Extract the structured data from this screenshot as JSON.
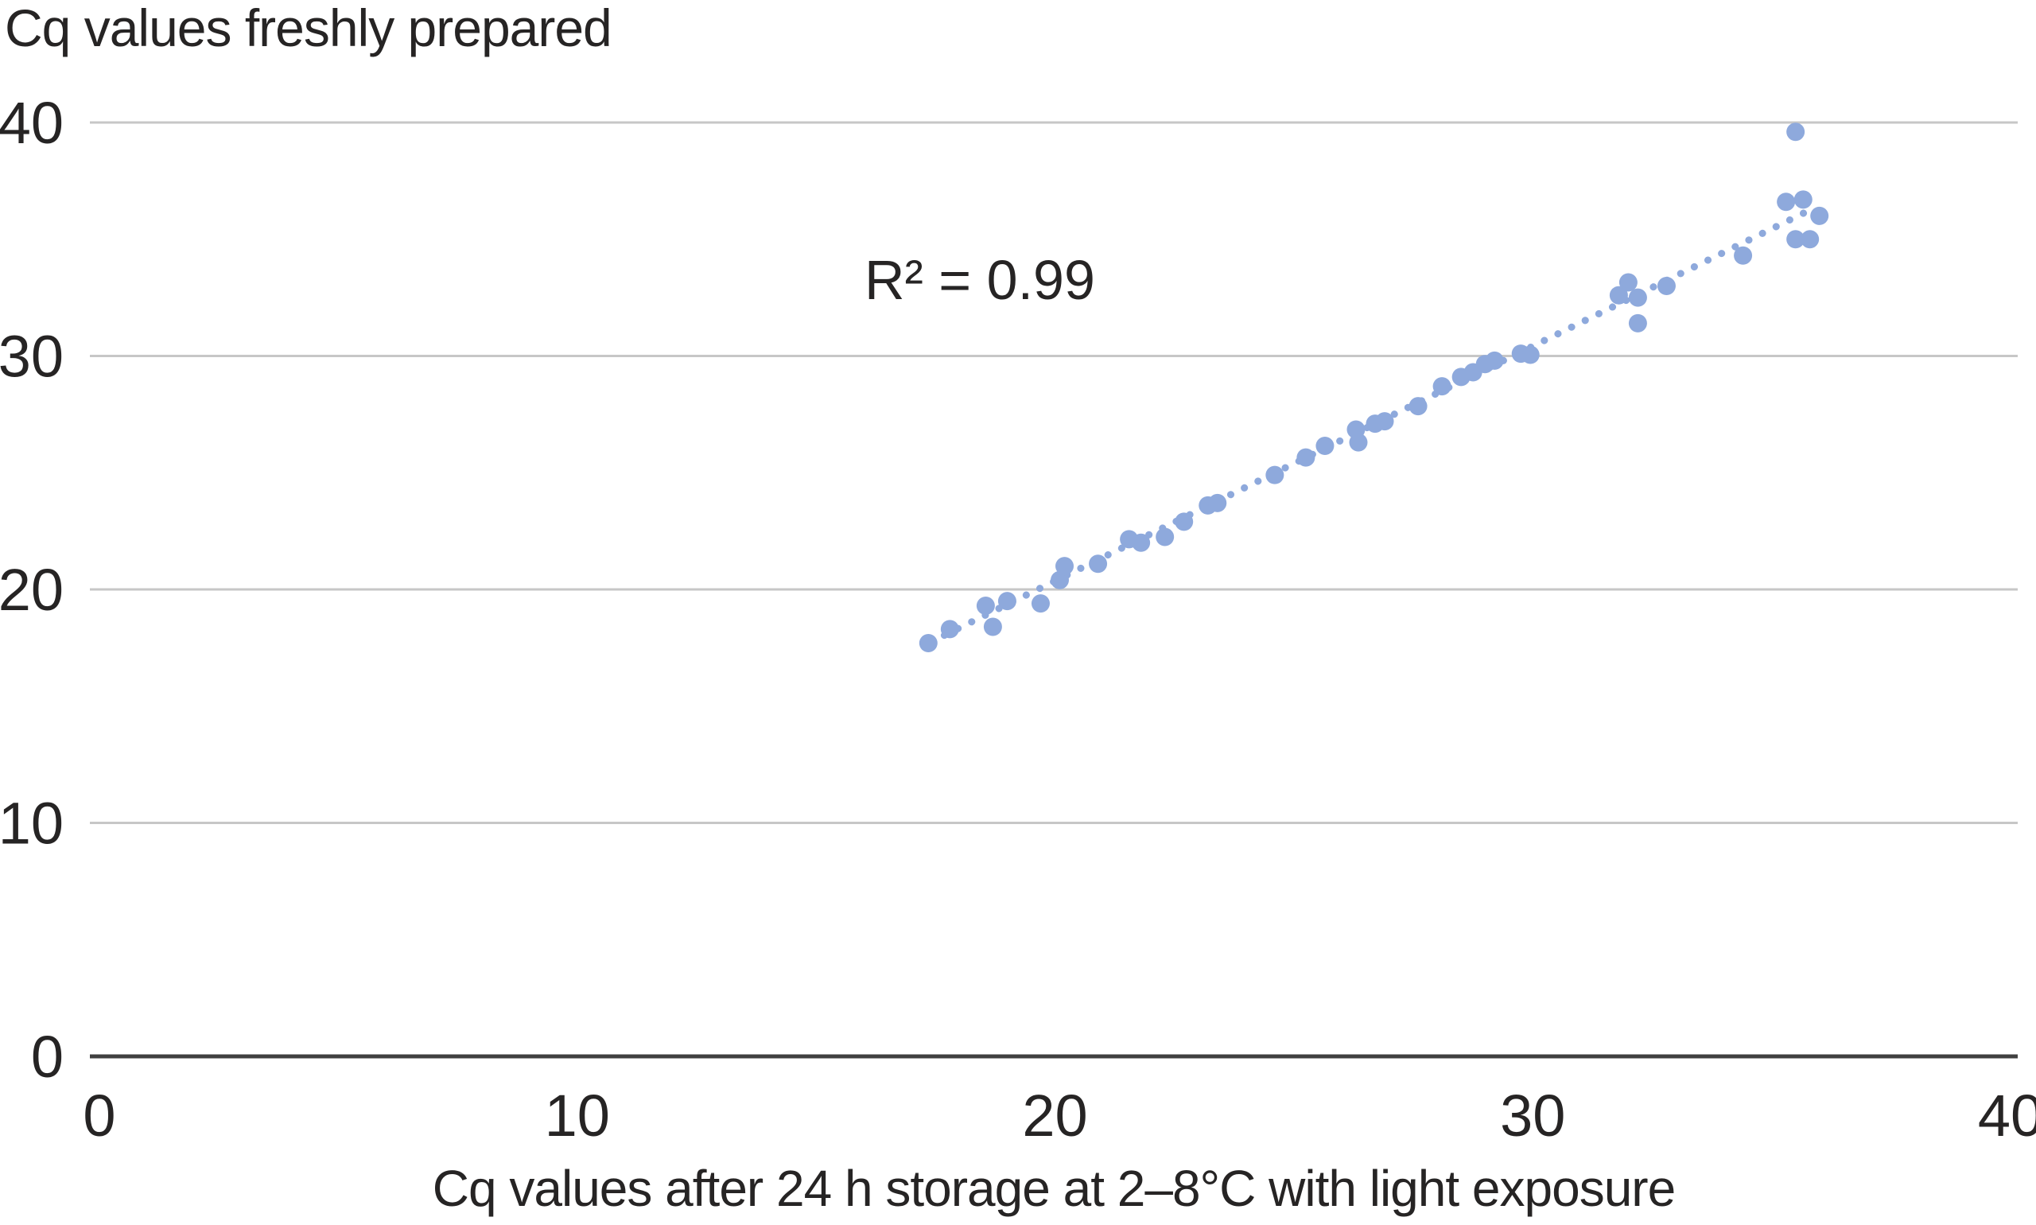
{
  "chart_data": {
    "type": "scatter",
    "title": "Cq values freshly prepared",
    "xlabel": "Cq values after 24 h storage at 2–8°C with light exposure",
    "ylabel_shown_as_title": true,
    "annotation": "R² = 0.99",
    "xlim": [
      0,
      40
    ],
    "ylim": [
      0,
      40
    ],
    "xticks": [
      "0",
      "10",
      "20",
      "30",
      "40"
    ],
    "yticks": [
      "0",
      "10",
      "20",
      "30",
      "40"
    ],
    "grid": "horizontal-only",
    "legend": "none",
    "colors": {
      "point": "#8EA9DC",
      "trendline": "#8EA9DC",
      "gridline": "#C7C7C7",
      "axis_line": "#404040",
      "text": "#262424"
    },
    "trendline": {
      "style": "dotted",
      "x1": 17.4,
      "y1": 17.75,
      "x2": 35.85,
      "y2": 36.3
    },
    "points": [
      [
        17.35,
        17.7
      ],
      [
        17.8,
        18.3
      ],
      [
        18.55,
        19.3
      ],
      [
        18.7,
        18.4
      ],
      [
        19.0,
        19.5
      ],
      [
        19.7,
        19.4
      ],
      [
        20.1,
        20.4
      ],
      [
        20.2,
        21.0
      ],
      [
        20.9,
        21.1
      ],
      [
        21.55,
        22.15
      ],
      [
        21.8,
        22.0
      ],
      [
        22.3,
        22.25
      ],
      [
        22.7,
        22.9
      ],
      [
        23.2,
        23.6
      ],
      [
        23.4,
        23.7
      ],
      [
        24.6,
        24.9
      ],
      [
        25.25,
        25.65
      ],
      [
        25.65,
        26.15
      ],
      [
        26.3,
        26.85
      ],
      [
        26.35,
        26.3
      ],
      [
        26.7,
        27.1
      ],
      [
        26.9,
        27.2
      ],
      [
        27.6,
        27.85
      ],
      [
        28.1,
        28.7
      ],
      [
        28.5,
        29.1
      ],
      [
        28.75,
        29.3
      ],
      [
        29.0,
        29.65
      ],
      [
        29.2,
        29.8
      ],
      [
        29.75,
        30.1
      ],
      [
        29.95,
        30.05
      ],
      [
        31.8,
        32.6
      ],
      [
        32.0,
        33.15
      ],
      [
        32.2,
        32.5
      ],
      [
        32.2,
        31.4
      ],
      [
        32.8,
        33.0
      ],
      [
        34.4,
        34.3
      ],
      [
        35.3,
        36.6
      ],
      [
        35.66,
        36.7
      ],
      [
        36.0,
        36.0
      ],
      [
        35.5,
        35.0
      ],
      [
        35.8,
        35.0
      ],
      [
        35.5,
        39.6
      ]
    ]
  }
}
